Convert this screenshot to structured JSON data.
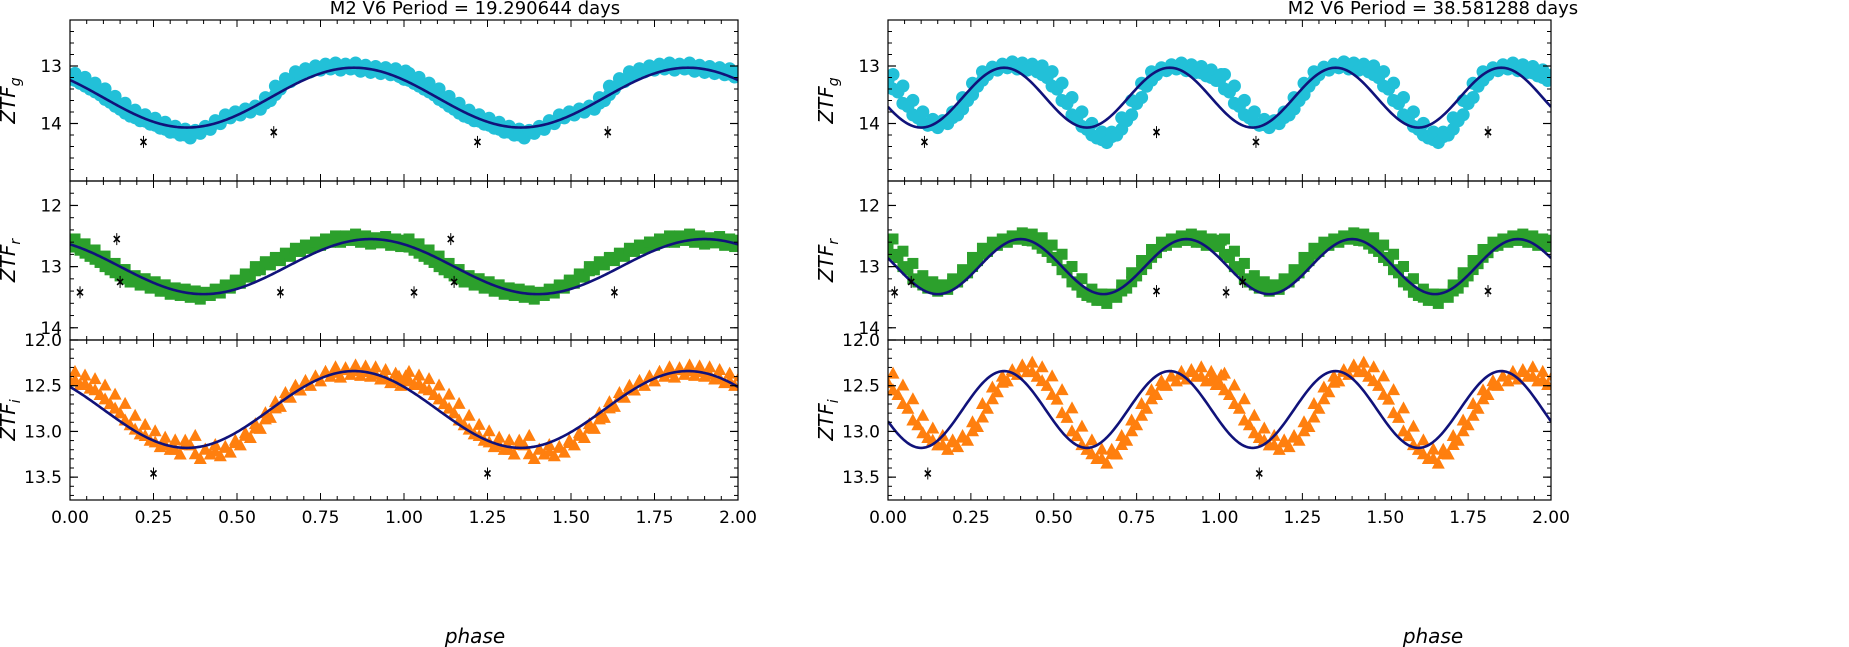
{
  "chart_data": [
    {
      "type": "scatter",
      "title": "M2 V6     Period = 19.290644 days",
      "xlabel": "phase",
      "xlim": [
        0,
        2
      ],
      "xticks": [
        0,
        0.25,
        0.5,
        0.75,
        1.0,
        1.25,
        1.5,
        1.75,
        2.0
      ],
      "xtick_labels": [
        "0.00",
        "0.25",
        "0.50",
        "0.75",
        "1.00",
        "1.25",
        "1.50",
        "1.75",
        "2.00"
      ],
      "harmonics": 1,
      "panels": [
        {
          "band": "g",
          "ylabel_main": "ZTF",
          "ylabel_sub": "g",
          "marker": "circle",
          "color": "#22c0d8",
          "ylim": [
            15.0,
            12.2
          ],
          "yticks": [
            13,
            14
          ],
          "ytick_labels": [
            "13",
            "14"
          ],
          "model": {
            "mean": 13.55,
            "amp": 0.52,
            "phi0": 0.85
          },
          "phase": [
            0.0,
            0.03,
            0.06,
            0.09,
            0.12,
            0.15,
            0.18,
            0.21,
            0.24,
            0.27,
            0.3,
            0.33,
            0.36,
            0.39,
            0.42,
            0.45,
            0.48,
            0.51,
            0.54,
            0.57,
            0.6,
            0.63,
            0.66,
            0.69,
            0.72,
            0.75,
            0.78,
            0.81,
            0.84,
            0.87,
            0.9,
            0.93,
            0.96,
            0.99
          ],
          "mag": [
            13.18,
            13.25,
            13.35,
            13.45,
            13.58,
            13.7,
            13.82,
            13.9,
            13.96,
            14.03,
            14.1,
            14.15,
            14.2,
            14.12,
            14.05,
            13.95,
            13.85,
            13.8,
            13.75,
            13.7,
            13.55,
            13.35,
            13.22,
            13.1,
            13.05,
            13.02,
            13.0,
            13.02,
            13.0,
            13.04,
            13.06,
            13.08,
            13.1,
            13.14
          ],
          "outliers": [
            {
              "phase": 0.22,
              "mag": 14.32
            },
            {
              "phase": 0.61,
              "mag": 14.15
            }
          ]
        },
        {
          "band": "r",
          "ylabel_main": "ZTF",
          "ylabel_sub": "r",
          "marker": "square",
          "color": "#2ca02c",
          "ylim": [
            14.2,
            11.6
          ],
          "yticks": [
            12,
            13,
            14
          ],
          "ytick_labels": [
            "12",
            "13",
            "14"
          ],
          "model": {
            "mean": 13.0,
            "amp": 0.45,
            "phi0": 0.9
          },
          "phase": [
            0.0,
            0.03,
            0.06,
            0.09,
            0.12,
            0.15,
            0.18,
            0.21,
            0.24,
            0.27,
            0.3,
            0.33,
            0.36,
            0.39,
            0.42,
            0.45,
            0.48,
            0.51,
            0.54,
            0.57,
            0.6,
            0.63,
            0.66,
            0.69,
            0.72,
            0.75,
            0.78,
            0.81,
            0.84,
            0.87,
            0.9,
            0.93,
            0.96,
            0.99
          ],
          "mag": [
            12.6,
            12.68,
            12.78,
            12.88,
            13.0,
            13.1,
            13.2,
            13.25,
            13.3,
            13.35,
            13.4,
            13.42,
            13.45,
            13.48,
            13.42,
            13.38,
            13.3,
            13.22,
            13.12,
            13.0,
            12.92,
            12.85,
            12.78,
            12.7,
            12.65,
            12.6,
            12.55,
            12.55,
            12.52,
            12.55,
            12.58,
            12.56,
            12.6,
            12.62
          ],
          "outliers": [
            {
              "phase": 0.03,
              "mag": 13.42
            },
            {
              "phase": 0.14,
              "mag": 12.55
            },
            {
              "phase": 0.15,
              "mag": 13.25
            },
            {
              "phase": 0.63,
              "mag": 13.42
            }
          ]
        },
        {
          "band": "i",
          "ylabel_main": "ZTF",
          "ylabel_sub": "i",
          "marker": "triangle",
          "color": "#ff7f0e",
          "ylim": [
            13.75,
            12.0
          ],
          "yticks": [
            12.0,
            12.5,
            13.0,
            13.5
          ],
          "ytick_labels": [
            "12.0",
            "12.5",
            "13.0",
            "13.5"
          ],
          "model": {
            "mean": 12.76,
            "amp": 0.42,
            "phi0": 0.85
          },
          "phase": [
            0.0,
            0.03,
            0.06,
            0.09,
            0.12,
            0.15,
            0.18,
            0.21,
            0.24,
            0.27,
            0.3,
            0.33,
            0.36,
            0.39,
            0.42,
            0.45,
            0.48,
            0.51,
            0.54,
            0.57,
            0.6,
            0.63,
            0.66,
            0.69,
            0.72,
            0.75,
            0.78,
            0.81,
            0.84,
            0.87,
            0.9,
            0.93,
            0.96,
            0.99
          ],
          "mag": [
            12.4,
            12.44,
            12.48,
            12.55,
            12.65,
            12.75,
            12.88,
            12.98,
            13.05,
            13.12,
            13.15,
            13.2,
            13.1,
            13.25,
            13.2,
            13.22,
            13.18,
            13.1,
            13.02,
            12.92,
            12.8,
            12.68,
            12.58,
            12.5,
            12.45,
            12.4,
            12.35,
            12.36,
            12.33,
            12.34,
            12.35,
            12.38,
            12.42,
            12.45
          ],
          "outliers": [
            {
              "phase": 0.25,
              "mag": 13.46
            }
          ]
        }
      ]
    },
    {
      "type": "scatter",
      "title": "M2 V6     Period = 38.581288 days",
      "xlabel": "phase",
      "xlim": [
        0,
        2
      ],
      "xticks": [
        0,
        0.25,
        0.5,
        0.75,
        1.0,
        1.25,
        1.5,
        1.75,
        2.0
      ],
      "xtick_labels": [
        "0.00",
        "0.25",
        "0.50",
        "0.75",
        "1.00",
        "1.25",
        "1.50",
        "1.75",
        "2.00"
      ],
      "harmonics": 2,
      "panels": [
        {
          "band": "g",
          "ylabel_main": "ZTF",
          "ylabel_sub": "g",
          "marker": "circle",
          "color": "#22c0d8",
          "ylim": [
            15.0,
            12.2
          ],
          "yticks": [
            13,
            14
          ],
          "ytick_labels": [
            "13",
            "14"
          ],
          "model": {
            "mean": 13.55,
            "amp": 0.52,
            "phi0": 0.85
          },
          "phase": [
            0.0,
            0.03,
            0.06,
            0.09,
            0.12,
            0.15,
            0.18,
            0.21,
            0.24,
            0.27,
            0.3,
            0.33,
            0.36,
            0.39,
            0.42,
            0.45,
            0.48,
            0.51,
            0.54,
            0.57,
            0.6,
            0.63,
            0.66,
            0.69,
            0.72,
            0.75,
            0.78,
            0.81,
            0.84,
            0.87,
            0.9,
            0.93,
            0.96,
            0.99
          ],
          "mag": [
            13.2,
            13.4,
            13.65,
            13.85,
            13.98,
            14.02,
            13.95,
            13.8,
            13.55,
            13.3,
            13.1,
            13.02,
            12.98,
            13.0,
            13.02,
            13.05,
            13.15,
            13.35,
            13.6,
            13.85,
            14.05,
            14.2,
            14.28,
            14.15,
            13.9,
            13.6,
            13.3,
            13.1,
            13.03,
            13.0,
            13.03,
            13.06,
            13.12,
            13.2
          ],
          "outliers": [
            {
              "phase": 0.11,
              "mag": 14.32
            },
            {
              "phase": 0.81,
              "mag": 14.15
            }
          ]
        },
        {
          "band": "r",
          "ylabel_main": "ZTF",
          "ylabel_sub": "r",
          "marker": "square",
          "color": "#2ca02c",
          "ylim": [
            14.2,
            11.6
          ],
          "yticks": [
            12,
            13,
            14
          ],
          "ytick_labels": [
            "12",
            "13",
            "14"
          ],
          "model": {
            "mean": 13.0,
            "amp": 0.45,
            "phi0": 0.9
          },
          "phase": [
            0.0,
            0.03,
            0.06,
            0.09,
            0.12,
            0.15,
            0.18,
            0.21,
            0.24,
            0.27,
            0.3,
            0.33,
            0.36,
            0.39,
            0.42,
            0.45,
            0.48,
            0.51,
            0.54,
            0.57,
            0.6,
            0.63,
            0.66,
            0.69,
            0.72,
            0.75,
            0.78,
            0.81,
            0.84,
            0.87,
            0.9,
            0.93,
            0.96,
            0.99
          ],
          "mag": [
            12.6,
            12.8,
            13.0,
            13.2,
            13.3,
            13.35,
            13.32,
            13.2,
            13.05,
            12.85,
            12.7,
            12.6,
            12.55,
            12.5,
            12.52,
            12.58,
            12.7,
            12.85,
            13.05,
            13.25,
            13.42,
            13.5,
            13.55,
            13.45,
            13.3,
            13.1,
            12.9,
            12.72,
            12.6,
            12.55,
            12.52,
            12.55,
            12.6,
            12.62
          ],
          "outliers": [
            {
              "phase": 0.02,
              "mag": 13.42
            },
            {
              "phase": 0.07,
              "mag": 13.25
            },
            {
              "phase": 0.81,
              "mag": 13.4
            }
          ]
        },
        {
          "band": "i",
          "ylabel_main": "ZTF",
          "ylabel_sub": "i",
          "marker": "triangle",
          "color": "#ff7f0e",
          "ylim": [
            13.75,
            12.0
          ],
          "yticks": [
            12.0,
            12.5,
            13.0,
            13.5
          ],
          "ytick_labels": [
            "12.0",
            "12.5",
            "13.0",
            "13.5"
          ],
          "model": {
            "mean": 12.76,
            "amp": 0.42,
            "phi0": 0.85
          },
          "phase": [
            0.0,
            0.03,
            0.06,
            0.09,
            0.12,
            0.15,
            0.18,
            0.21,
            0.24,
            0.27,
            0.3,
            0.33,
            0.36,
            0.39,
            0.42,
            0.45,
            0.48,
            0.51,
            0.54,
            0.57,
            0.6,
            0.63,
            0.66,
            0.69,
            0.72,
            0.75,
            0.78,
            0.81,
            0.84,
            0.87,
            0.9,
            0.93,
            0.96,
            0.99
          ],
          "mag": [
            12.42,
            12.55,
            12.7,
            12.88,
            13.02,
            13.1,
            13.15,
            13.12,
            13.05,
            12.9,
            12.7,
            12.52,
            12.4,
            12.33,
            12.3,
            12.35,
            12.45,
            12.6,
            12.8,
            13.0,
            13.15,
            13.25,
            13.3,
            13.2,
            13.05,
            12.88,
            12.7,
            12.55,
            12.45,
            12.4,
            12.38,
            12.35,
            12.4,
            12.44
          ],
          "outliers": [
            {
              "phase": 0.12,
              "mag": 13.46
            }
          ]
        }
      ]
    }
  ],
  "style": {
    "model_color": "#10127a",
    "outlier_color": "#000000",
    "axis_color": "#000000"
  }
}
